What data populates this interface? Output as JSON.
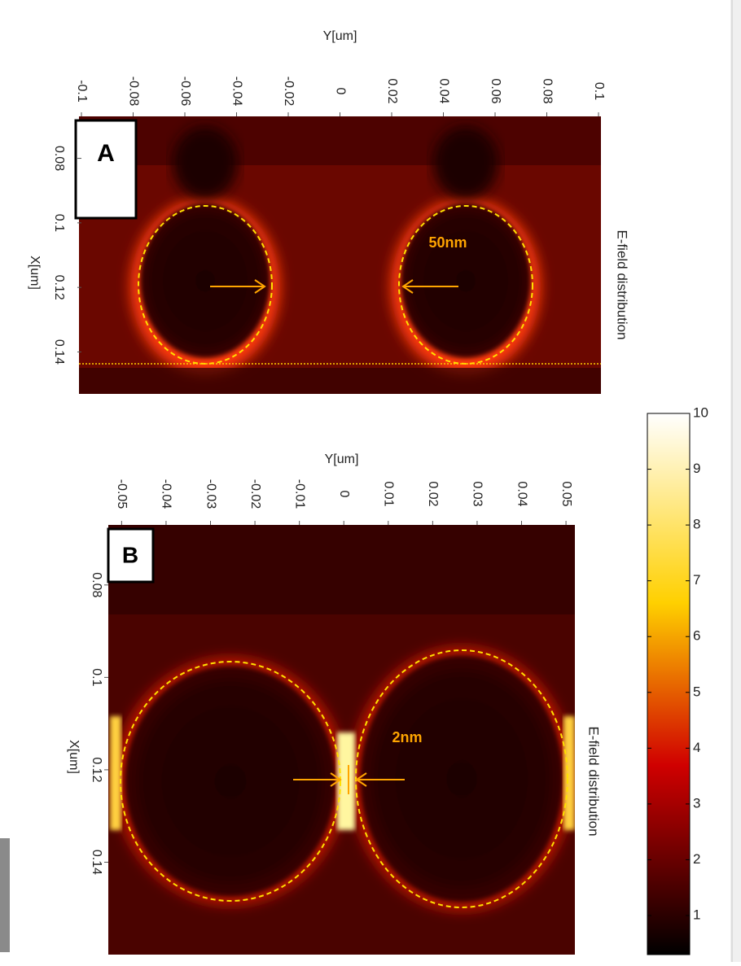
{
  "chart_data": [
    {
      "type": "heatmap",
      "label": "A",
      "xlabel": "Y[um]",
      "ylabel": "X[um]",
      "title": "E-field distribution",
      "annotation": "50nm",
      "xlim": [
        -0.1,
        0.1
      ],
      "xticks": [
        -0.1,
        -0.08,
        -0.06,
        -0.04,
        -0.02,
        0,
        0.02,
        0.04,
        0.06,
        0.08,
        0.1
      ],
      "ylim": [
        0.067,
        0.153
      ],
      "yticks": [
        0.08,
        0.1,
        0.12,
        0.14
      ]
    },
    {
      "type": "heatmap",
      "label": "B",
      "xlabel": "Y[um]",
      "ylabel": "X[um]",
      "title": "E-field distribution",
      "annotation": "2nm",
      "xlim": [
        -0.053,
        0.052
      ],
      "xticks": [
        -0.05,
        -0.04,
        -0.03,
        -0.02,
        -0.01,
        0,
        0.01,
        0.02,
        0.03,
        0.04,
        0.05
      ],
      "ylim": [
        0.067,
        0.16
      ],
      "yticks": [
        0.08,
        0.1,
        0.12,
        0.14
      ]
    }
  ],
  "colorbar": {
    "lim": [
      0.3,
      10
    ],
    "ticks": [
      1,
      2,
      3,
      4,
      5,
      6,
      7,
      8,
      9,
      10
    ]
  }
}
